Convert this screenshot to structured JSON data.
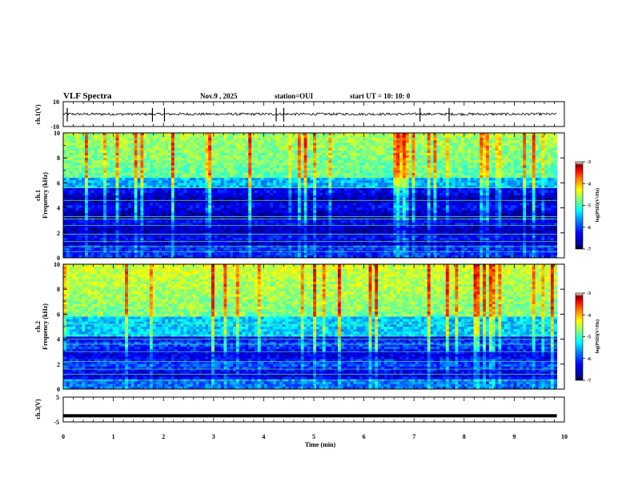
{
  "header": {
    "title": "VLF Spectra",
    "date": "Nov.9 , 2025",
    "station": "station=OUI",
    "start": "start UT = 10: 10: 0"
  },
  "chart_data": [
    {
      "id": "ch1-waveform",
      "type": "line",
      "ylabel": "ch.1(V)",
      "ytick_labels": [
        "10",
        "-10"
      ],
      "ylim": [
        -10,
        10
      ],
      "baseline": 0,
      "noise_amplitude": 1,
      "spike_times_min": [
        0.08,
        1.78,
        2.02,
        4.25,
        4.4,
        7.12,
        7.7
      ]
    },
    {
      "id": "ch1-spectrogram",
      "type": "heatmap",
      "ylabel_line1": "ch.1",
      "ylabel_line2": "Frequency (kHz)",
      "ylim": [
        0,
        10
      ],
      "yticks": [
        0,
        2,
        4,
        6,
        8,
        10
      ],
      "ytick_labels": [
        "0",
        "2",
        "4",
        "6",
        "8",
        "10"
      ],
      "colorbar": {
        "label": "log(PSD)(V²/Hz)",
        "range": [
          -7,
          -3
        ],
        "tick_labels": [
          "-3",
          "-4",
          "-5",
          "-6",
          "-7"
        ]
      }
    },
    {
      "id": "ch2-spectrogram",
      "type": "heatmap",
      "ylabel_line1": "ch.2",
      "ylabel_line2": "Frequency (kHz)",
      "ylim": [
        0,
        10
      ],
      "yticks": [
        0,
        2,
        4,
        6,
        8,
        10
      ],
      "ytick_labels": [
        "0",
        "2",
        "4",
        "6",
        "8",
        "10"
      ],
      "colorbar": {
        "label": "log(PSD)(V²/Hz)",
        "range": [
          -7,
          -3
        ],
        "tick_labels": [
          "-3",
          "-4",
          "-5",
          "-6",
          "-7"
        ]
      }
    },
    {
      "id": "ch3-waveform",
      "type": "line",
      "ylabel": "ch.3(V)",
      "ytick_labels": [
        "5",
        "-5"
      ],
      "ylim": [
        -5,
        5
      ],
      "baseline": -2.5
    }
  ],
  "time_axis": {
    "label": "Time (min)",
    "xlim": [
      0,
      10
    ],
    "data_end": 9.85,
    "ticks": [
      "0",
      "1",
      "2",
      "3",
      "4",
      "5",
      "6",
      "7",
      "8",
      "9",
      "10"
    ]
  },
  "colors": {
    "frame": "#000000",
    "trace": "#000000",
    "colormap": [
      "#000000",
      "#00008f",
      "#0000ff",
      "#0080ff",
      "#00ffff",
      "#80ff80",
      "#ffff00",
      "#ff8000",
      "#ff0000",
      "#800000",
      "#ffffff"
    ]
  }
}
